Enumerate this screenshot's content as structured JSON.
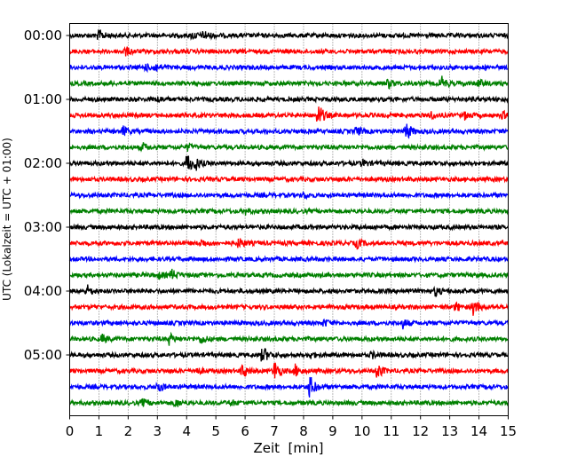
{
  "chart_data": {
    "type": "line",
    "title": "",
    "xlabel": "Zeit  [min]",
    "ylabel": "UTC (Lokalzeit = UTC + 01:00)",
    "xlim": [
      0,
      15
    ],
    "xticks": [
      "0",
      "1",
      "2",
      "3",
      "4",
      "5",
      "6",
      "7",
      "8",
      "9",
      "10",
      "11",
      "12",
      "13",
      "14",
      "15"
    ],
    "yticks": [
      {
        "label": "00:00",
        "trace": 0
      },
      {
        "label": "01:00",
        "trace": 4
      },
      {
        "label": "02:00",
        "trace": 8
      },
      {
        "label": "03:00",
        "trace": 12
      },
      {
        "label": "04:00",
        "trace": 16
      },
      {
        "label": "05:00",
        "trace": 20
      }
    ],
    "grid": "vertical dotted",
    "trace_count": 24,
    "trace_minutes": 15,
    "colors": [
      "#000000",
      "#ff0000",
      "#0000ff",
      "#008000"
    ],
    "events": [
      [
        0,
        1.0,
        6
      ],
      [
        0,
        4.6,
        5
      ],
      [
        0,
        4.2,
        4
      ],
      [
        1,
        1.9,
        5
      ],
      [
        2,
        2.9,
        5
      ],
      [
        2,
        2.6,
        3
      ],
      [
        3,
        10.9,
        5
      ],
      [
        3,
        12.7,
        8
      ],
      [
        3,
        14.0,
        4
      ],
      [
        4,
        3.0,
        3
      ],
      [
        5,
        8.5,
        14
      ],
      [
        5,
        12.3,
        5
      ],
      [
        5,
        13.5,
        4
      ],
      [
        5,
        14.8,
        4
      ],
      [
        6,
        1.8,
        6
      ],
      [
        6,
        9.8,
        5
      ],
      [
        6,
        11.5,
        11
      ],
      [
        7,
        2.5,
        4
      ],
      [
        7,
        4.0,
        4
      ],
      [
        8,
        4.0,
        14
      ],
      [
        8,
        4.3,
        6
      ],
      [
        8,
        10.0,
        4
      ],
      [
        10,
        8.0,
        3
      ],
      [
        11,
        6.0,
        3
      ],
      [
        13,
        5.8,
        6
      ],
      [
        13,
        9.8,
        6
      ],
      [
        13,
        4.5,
        4
      ],
      [
        15,
        3.5,
        5
      ],
      [
        15,
        3.0,
        4
      ],
      [
        16,
        0.6,
        6
      ],
      [
        16,
        12.5,
        5
      ],
      [
        17,
        13.8,
        9
      ],
      [
        17,
        13.2,
        5
      ],
      [
        18,
        8.7,
        4
      ],
      [
        18,
        11.4,
        5
      ],
      [
        19,
        1.1,
        5
      ],
      [
        19,
        3.4,
        6
      ],
      [
        19,
        4.5,
        5
      ],
      [
        20,
        6.6,
        10
      ],
      [
        20,
        8.2,
        4
      ],
      [
        20,
        10.3,
        4
      ],
      [
        21,
        5.9,
        9
      ],
      [
        21,
        7.0,
        12
      ],
      [
        21,
        7.7,
        7
      ],
      [
        21,
        10.5,
        10
      ],
      [
        21,
        4.3,
        5
      ],
      [
        22,
        3.0,
        7
      ],
      [
        22,
        8.2,
        14
      ],
      [
        23,
        2.5,
        4
      ],
      [
        23,
        3.6,
        5
      ],
      [
        23,
        5.5,
        3
      ]
    ]
  }
}
